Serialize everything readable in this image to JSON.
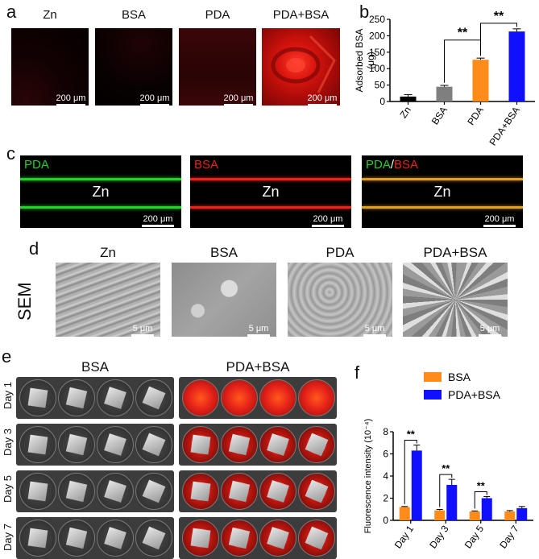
{
  "panel_letters": {
    "a": "a",
    "b": "b",
    "c": "c",
    "d": "d",
    "e": "e",
    "f": "f"
  },
  "panel_a": {
    "labels": [
      "Zn",
      "BSA",
      "PDA",
      "PDA+BSA"
    ],
    "scale": "200 μm"
  },
  "panel_c": {
    "labels": {
      "pda": "PDA",
      "bsa": "BSA",
      "merge_pda": "PDA",
      "merge_slash": "/",
      "merge_bsa": "BSA"
    },
    "center_label": "Zn",
    "scale": "200 μm",
    "colors": {
      "green": "#22d22a",
      "red": "#e8231a"
    }
  },
  "panel_d": {
    "labels": [
      "Zn",
      "BSA",
      "PDA",
      "PDA+BSA"
    ],
    "row_label": "SEM",
    "scale": "5 μm"
  },
  "panel_e": {
    "col_labels": [
      "BSA",
      "PDA+BSA"
    ],
    "row_labels": [
      "Day 1",
      "Day 3",
      "Day 5",
      "Day 7"
    ]
  },
  "chart_data": [
    {
      "type": "bar",
      "panel": "b",
      "categories": [
        "Zn",
        "BSA",
        "PDA",
        "PDA+BSA"
      ],
      "values": [
        15,
        45,
        127,
        213
      ],
      "errors": [
        6,
        4,
        5,
        8
      ],
      "colors": [
        "#000000",
        "#7f7f7f",
        "#ff8c1a",
        "#1010ff"
      ],
      "ylabel_line1": "Adsorbed BSA",
      "ylabel_line2": "(μg)",
      "ylim": [
        0,
        250
      ],
      "yticks": [
        "0",
        "50",
        "100",
        "150",
        "200",
        "250"
      ],
      "significance": [
        "**",
        "**"
      ]
    },
    {
      "type": "bar",
      "panel": "f",
      "categories": [
        "Day 1",
        "Day 3",
        "Day 5",
        "Day 7"
      ],
      "series": [
        {
          "name": "BSA",
          "values": [
            1.2,
            0.9,
            0.8,
            0.8
          ],
          "errors": [
            0.05,
            0.08,
            0.05,
            0.08
          ],
          "color": "#ff8c1a"
        },
        {
          "name": "PDA+BSA",
          "values": [
            6.3,
            3.2,
            2.0,
            1.1
          ],
          "errors": [
            0.5,
            0.5,
            0.15,
            0.15
          ],
          "color": "#1010ff"
        }
      ],
      "ylabel": "Fluorescence intensity (10⁻⁴)",
      "ylim": [
        0,
        8
      ],
      "yticks": [
        "0",
        "2",
        "4",
        "6",
        "8"
      ],
      "significance": [
        "**",
        "**",
        "**"
      ],
      "legend": "top-right"
    }
  ]
}
